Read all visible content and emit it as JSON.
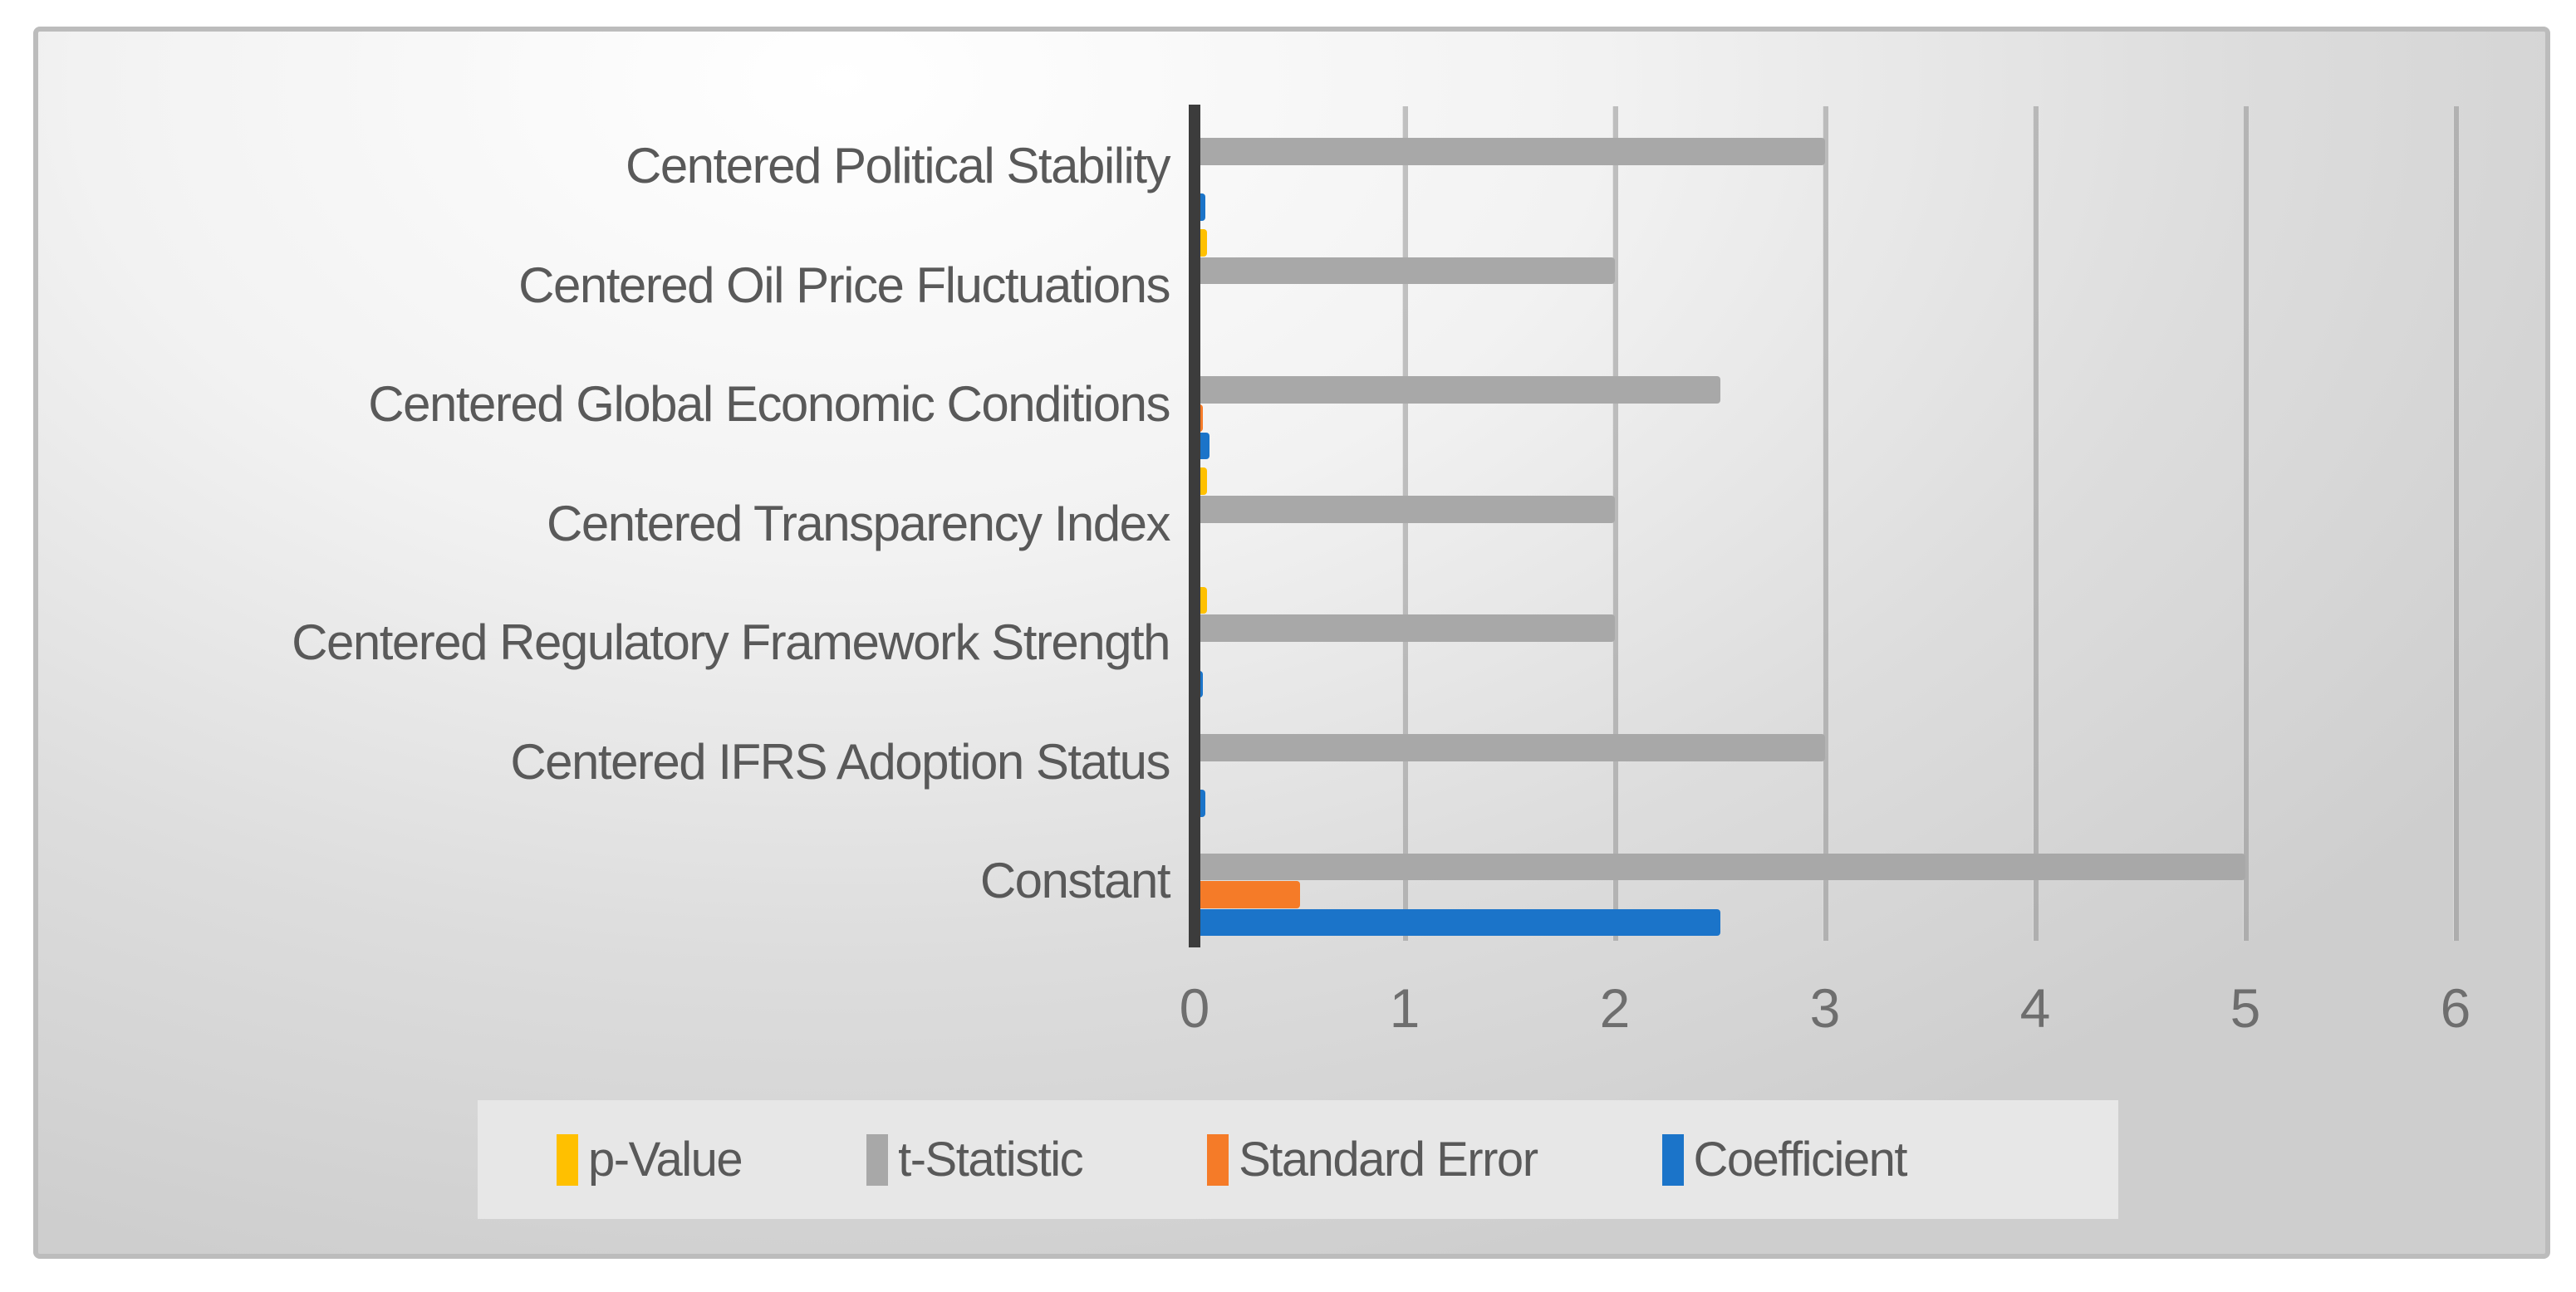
{
  "chart_data": {
    "type": "bar",
    "orientation": "horizontal",
    "title": "",
    "xlabel": "",
    "ylabel": "",
    "grid": true,
    "legend_position": "bottom",
    "xlim": [
      0,
      6
    ],
    "x_ticks": [
      0,
      1,
      2,
      3,
      4,
      5,
      6
    ],
    "x_tick_labels": [
      "0",
      "1",
      "2",
      "3",
      "4",
      "5",
      "6"
    ],
    "categories": [
      "Centered Political Stability",
      "Centered Oil Price Fluctuations",
      "Centered Global Economic Conditions",
      "Centered Transparency Index",
      "Centered Regulatory Framework Strength",
      "Centered IFRS Adoption Status",
      "Constant"
    ],
    "series": [
      {
        "name": "p-Value",
        "color": "#FFC000",
        "values": [
          0,
          0.06,
          0,
          0.06,
          0.06,
          0,
          0
        ]
      },
      {
        "name": "t-Statistic",
        "color": "#A8A8A8",
        "values": [
          3.0,
          2.0,
          2.5,
          2.0,
          2.0,
          3.0,
          5.0
        ]
      },
      {
        "name": "Standard Error",
        "color": "#F57B28",
        "values": [
          0,
          0,
          0.04,
          0,
          0,
          0,
          0.5
        ]
      },
      {
        "name": "Coefficient",
        "color": "#1B74C9",
        "values": [
          0.05,
          0,
          0.07,
          0,
          0.04,
          0.05,
          2.5
        ]
      }
    ],
    "colors": {
      "axis_line": "#3C3C3C",
      "gridline": "rgba(140,140,140,0.5)",
      "text": "#595959",
      "tick_text": "#6E6E6E",
      "legend_bg": "#E7E7E7",
      "frame_border": "#BCBCBC"
    }
  }
}
